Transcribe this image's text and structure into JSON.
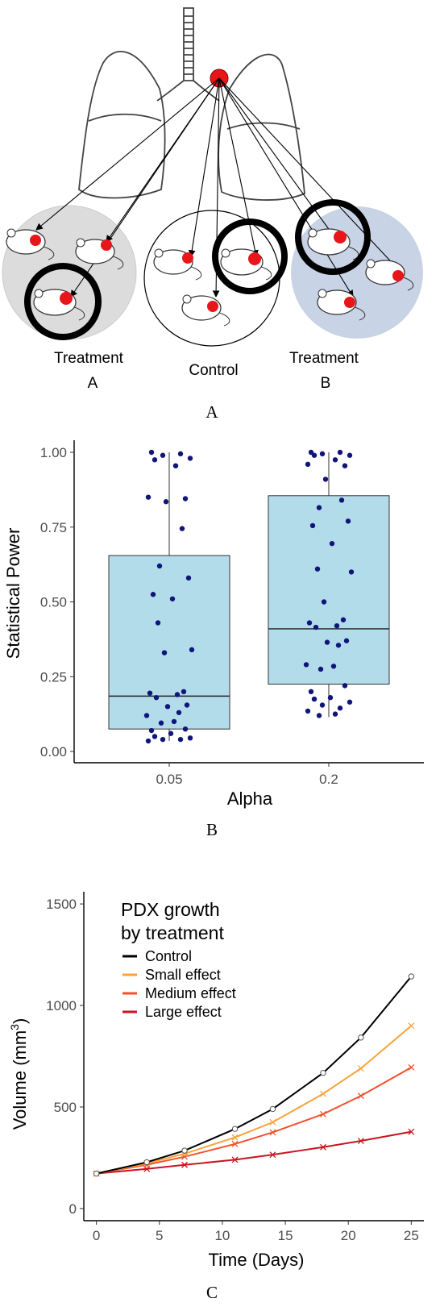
{
  "panel_a": {
    "group_labels": [
      {
        "line1": "Treatment",
        "line2": "A"
      },
      {
        "line1": "Control",
        "line2": ""
      },
      {
        "line1": "Treatment",
        "line2": "B"
      }
    ],
    "caption": "A",
    "colors": {
      "tumor": "#e8161b",
      "group_a_bg": "#dcdcdc",
      "group_b_bg": "#c9d3e6",
      "control_bg": "#ffffff"
    }
  },
  "panel_b": {
    "caption": "B",
    "colors": {
      "box_fill": "#b3dceb",
      "point": "#10157a"
    }
  },
  "panel_c": {
    "caption": "C",
    "legend_title_line1": "PDX growth",
    "legend_title_line2": " by treatment",
    "ylabel_prefix": "Volume (mm",
    "ylabel_sup": "3",
    "ylabel_suffix": ")"
  },
  "chart_data": [
    {
      "type": "box",
      "xlabel": "Alpha",
      "ylabel": "Statistical Power",
      "categories": [
        "0.05",
        "0.2"
      ],
      "ylim": [
        0,
        1
      ],
      "yticks": [
        "0.00",
        "0.25",
        "0.50",
        "0.75",
        "1.00"
      ],
      "grid": false,
      "boxes": [
        {
          "category": "0.05",
          "q1": 0.075,
          "median": 0.185,
          "q3": 0.655,
          "whisker_low": 0.035,
          "whisker_high": 1.0
        },
        {
          "category": "0.2",
          "q1": 0.225,
          "median": 0.41,
          "q3": 0.855,
          "whisker_low": 0.115,
          "whisker_high": 1.0
        }
      ],
      "points": [
        {
          "category": "0.05",
          "values": [
            1.0,
            0.995,
            0.99,
            0.98,
            0.975,
            0.955,
            0.85,
            0.845,
            0.835,
            0.745,
            0.62,
            0.58,
            0.525,
            0.51,
            0.43,
            0.34,
            0.33,
            0.2,
            0.195,
            0.19,
            0.18,
            0.155,
            0.15,
            0.13,
            0.12,
            0.1,
            0.095,
            0.075,
            0.07,
            0.06,
            0.05,
            0.045,
            0.04,
            0.04,
            0.035
          ]
        },
        {
          "category": "0.2",
          "values": [
            1.0,
            1.0,
            0.995,
            0.99,
            0.99,
            0.975,
            0.96,
            0.955,
            0.91,
            0.84,
            0.815,
            0.77,
            0.755,
            0.695,
            0.61,
            0.6,
            0.5,
            0.44,
            0.43,
            0.42,
            0.415,
            0.37,
            0.365,
            0.355,
            0.29,
            0.285,
            0.275,
            0.22,
            0.2,
            0.18,
            0.175,
            0.165,
            0.155,
            0.145,
            0.135,
            0.125,
            0.12
          ]
        }
      ]
    },
    {
      "type": "line",
      "xlabel": "Time (Days)",
      "xlim": [
        -1,
        26
      ],
      "ylim": [
        -60,
        1560
      ],
      "xticks": [
        0,
        5,
        10,
        15,
        20,
        25
      ],
      "yticks": [
        0,
        500,
        1000,
        1500
      ],
      "grid": false,
      "legend_placement": "top-left",
      "x": [
        0,
        4,
        7,
        11,
        14,
        18,
        21,
        25
      ],
      "series": [
        {
          "name": "Control",
          "color": "#000000",
          "marker": "circle",
          "values": [
            172,
            228,
            285,
            392,
            490,
            668,
            842,
            1143
          ]
        },
        {
          "name": "Small effect",
          "color": "#f9a33b",
          "marker": "x",
          "values": [
            172,
            222,
            270,
            350,
            425,
            565,
            690,
            900
          ]
        },
        {
          "name": "Medium effect",
          "color": "#f0522d",
          "marker": "x",
          "values": [
            172,
            215,
            255,
            318,
            375,
            465,
            555,
            695
          ]
        },
        {
          "name": "Large effect",
          "color": "#cc1420",
          "marker": "x",
          "values": [
            172,
            195,
            215,
            240,
            265,
            302,
            333,
            378
          ]
        }
      ]
    }
  ]
}
